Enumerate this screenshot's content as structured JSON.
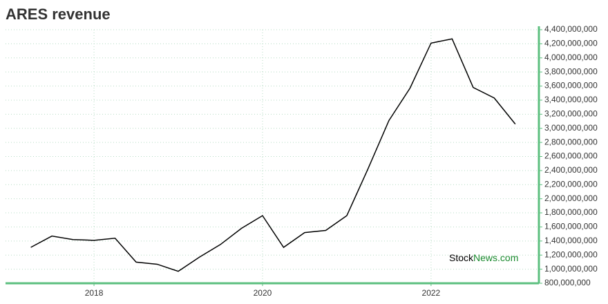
{
  "chart_data": {
    "type": "line",
    "title": "ARES revenue",
    "x": [
      2017.25,
      2017.5,
      2017.75,
      2018.0,
      2018.25,
      2018.5,
      2018.75,
      2019.0,
      2019.25,
      2019.5,
      2019.75,
      2020.0,
      2020.25,
      2020.5,
      2020.75,
      2021.0,
      2021.25,
      2021.5,
      2021.75,
      2022.0,
      2022.25,
      2022.5,
      2022.75,
      2023.0
    ],
    "series": [
      {
        "name": "Revenue",
        "color": "#000000",
        "values": [
          1310000000,
          1470000000,
          1420000000,
          1410000000,
          1440000000,
          1100000000,
          1070000000,
          970000000,
          1170000000,
          1350000000,
          1580000000,
          1760000000,
          1310000000,
          1520000000,
          1550000000,
          1760000000,
          2420000000,
          3110000000,
          3570000000,
          4210000000,
          4270000000,
          3580000000,
          3430000000,
          3060000000
        ]
      }
    ],
    "xlim": [
      2016.95,
      2023.28
    ],
    "xticks": [
      2018,
      2020,
      2022
    ],
    "ylim": [
      800000000,
      4400000000
    ],
    "yticks": [
      {
        "value": 800000000,
        "label": "800,000,000"
      },
      {
        "value": 1000000000,
        "label": "1,000,000,000"
      },
      {
        "value": 1200000000,
        "label": "1,200,000,000"
      },
      {
        "value": 1400000000,
        "label": "1,400,000,000"
      },
      {
        "value": 1600000000,
        "label": "1,600,000,000"
      },
      {
        "value": 1800000000,
        "label": "1,800,000,000"
      },
      {
        "value": 2000000000,
        "label": "2,000,000,000"
      },
      {
        "value": 2200000000,
        "label": "2,200,000,000"
      },
      {
        "value": 2400000000,
        "label": "2,400,000,000"
      },
      {
        "value": 2600000000,
        "label": "2,600,000,000"
      },
      {
        "value": 2800000000,
        "label": "2,800,000,000"
      },
      {
        "value": 3000000000,
        "label": "3,000,000,000"
      },
      {
        "value": 3200000000,
        "label": "3,200,000,000"
      },
      {
        "value": 3400000000,
        "label": "3,400,000,000"
      },
      {
        "value": 3600000000,
        "label": "3,600,000,000"
      },
      {
        "value": 3800000000,
        "label": "3,800,000,000"
      },
      {
        "value": 4000000000,
        "label": "4,000,000,000"
      },
      {
        "value": 4200000000,
        "label": "4,200,000,000"
      },
      {
        "value": 4400000000,
        "label": "4,400,000,000"
      }
    ],
    "grid": true,
    "axis_color": "#5cbf7f",
    "watermark": [
      "Stock",
      "News.com"
    ]
  }
}
